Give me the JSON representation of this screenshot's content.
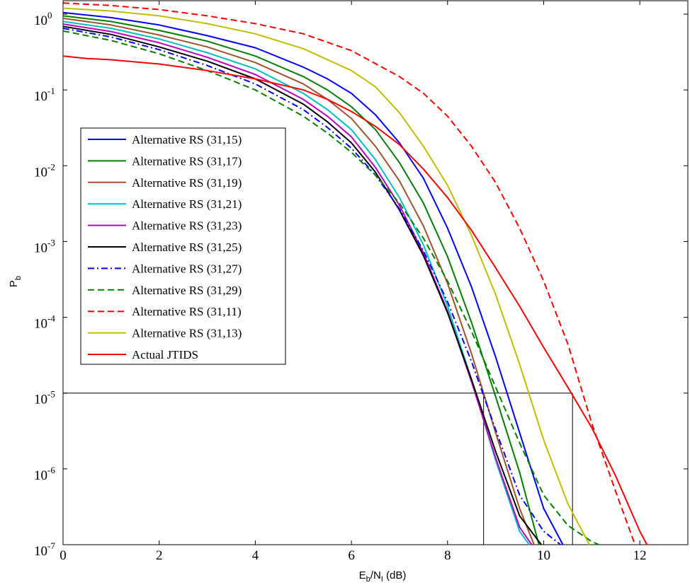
{
  "chart_data": {
    "type": "line",
    "xlabel": {
      "main": "E",
      "sub1": "b",
      "mid": "/N",
      "sub2": "I",
      "tail": " (dB)"
    },
    "ylabel": {
      "main": "P",
      "sub": "b"
    },
    "xlim": [
      0,
      13
    ],
    "ylim": [
      1e-07,
      1.5
    ],
    "yscale": "log",
    "grid": false,
    "legend_position": "upper-left",
    "x_ticks": [
      {
        "v": 0,
        "label": "0"
      },
      {
        "v": 2,
        "label": "2"
      },
      {
        "v": 4,
        "label": "4"
      },
      {
        "v": 6,
        "label": "6"
      },
      {
        "v": 8,
        "label": "8"
      },
      {
        "v": 10,
        "label": "10"
      },
      {
        "v": 12,
        "label": "12"
      }
    ],
    "y_ticks": [
      {
        "exp": 0,
        "base": "10",
        "sup": "0"
      },
      {
        "exp": -1,
        "base": "10",
        "sup": "-1"
      },
      {
        "exp": -2,
        "base": "10",
        "sup": "-2"
      },
      {
        "exp": -3,
        "base": "10",
        "sup": "-3"
      },
      {
        "exp": -4,
        "base": "10",
        "sup": "-4"
      },
      {
        "exp": -5,
        "base": "10",
        "sup": "-5"
      },
      {
        "exp": -6,
        "base": "10",
        "sup": "-6"
      },
      {
        "exp": -7,
        "base": "10",
        "sup": "-7"
      }
    ],
    "reference_lines": [
      {
        "orientation": "horizontal",
        "y": 1e-05,
        "x_from": 0,
        "x_to": 10.6
      },
      {
        "orientation": "vertical",
        "x": 8.75,
        "y_from": 1e-07,
        "y_to": 1e-05
      },
      {
        "orientation": "vertical",
        "x": 10.6,
        "y_from": 1e-07,
        "y_to": 1e-05
      }
    ],
    "series": [
      {
        "name": "Alternative RS (31,15)",
        "color": "#0000ff",
        "dash": "solid",
        "points": [
          [
            0,
            1.05
          ],
          [
            1,
            0.9
          ],
          [
            2,
            0.72
          ],
          [
            3,
            0.52
          ],
          [
            4,
            0.36
          ],
          [
            5,
            0.2
          ],
          [
            5.5,
            0.14
          ],
          [
            6,
            0.09
          ],
          [
            6.5,
            0.047
          ],
          [
            7,
            0.02
          ],
          [
            7.5,
            0.0068
          ],
          [
            8,
            0.0015
          ],
          [
            8.5,
            0.00025
          ],
          [
            9,
            3e-05
          ],
          [
            9.5,
            3e-06
          ],
          [
            10,
            3e-07
          ],
          [
            10.4,
            1e-07
          ]
        ]
      },
      {
        "name": "Alternative RS (31,17)",
        "color": "#008000",
        "dash": "solid",
        "points": [
          [
            0,
            0.95
          ],
          [
            1,
            0.8
          ],
          [
            2,
            0.61
          ],
          [
            3,
            0.44
          ],
          [
            4,
            0.28
          ],
          [
            5,
            0.15
          ],
          [
            5.5,
            0.1
          ],
          [
            6,
            0.06
          ],
          [
            6.5,
            0.03
          ],
          [
            7,
            0.011
          ],
          [
            7.5,
            0.0032
          ],
          [
            8,
            0.00063
          ],
          [
            8.5,
            8.5e-05
          ],
          [
            9,
            9e-06
          ],
          [
            9.5,
            9e-07
          ],
          [
            9.9,
            1e-07
          ]
        ]
      },
      {
        "name": "Alternative RS (31,19)",
        "color": "#a0522d",
        "dash": "solid",
        "points": [
          [
            0,
            0.88
          ],
          [
            1,
            0.72
          ],
          [
            2,
            0.53
          ],
          [
            3,
            0.37
          ],
          [
            4,
            0.23
          ],
          [
            5,
            0.12
          ],
          [
            5.5,
            0.075
          ],
          [
            6,
            0.042
          ],
          [
            6.5,
            0.018
          ],
          [
            7,
            0.0063
          ],
          [
            7.5,
            0.0016
          ],
          [
            8,
            0.00028
          ],
          [
            8.5,
            3.3e-05
          ],
          [
            9,
            3e-06
          ],
          [
            9.5,
            3e-07
          ],
          [
            9.8,
            1e-07
          ]
        ]
      },
      {
        "name": "Alternative RS (31,21)",
        "color": "#00bfbf",
        "dash": "solid",
        "points": [
          [
            0,
            0.8
          ],
          [
            1,
            0.65
          ],
          [
            2,
            0.47
          ],
          [
            3,
            0.31
          ],
          [
            4,
            0.19
          ],
          [
            5,
            0.09
          ],
          [
            5.5,
            0.055
          ],
          [
            6,
            0.03
          ],
          [
            6.5,
            0.012
          ],
          [
            7,
            0.0038
          ],
          [
            7.5,
            0.0009
          ],
          [
            8,
            0.00014
          ],
          [
            8.5,
            1.5e-05
          ],
          [
            9,
            1.3e-06
          ],
          [
            9.5,
            1.5e-07
          ],
          [
            9.7,
            1e-07
          ]
        ]
      },
      {
        "name": "Alternative RS (31,23)",
        "color": "#bf00bf",
        "dash": "solid",
        "points": [
          [
            0,
            0.74
          ],
          [
            1,
            0.59
          ],
          [
            2,
            0.42
          ],
          [
            3,
            0.27
          ],
          [
            4,
            0.16
          ],
          [
            5,
            0.075
          ],
          [
            5.5,
            0.045
          ],
          [
            6,
            0.024
          ],
          [
            6.5,
            0.0095
          ],
          [
            7,
            0.003
          ],
          [
            7.5,
            0.0007
          ],
          [
            8,
            0.00012
          ],
          [
            8.5,
            1.4e-05
          ],
          [
            9,
            1.4e-06
          ],
          [
            9.5,
            1.7e-07
          ],
          [
            9.75,
            1e-07
          ]
        ]
      },
      {
        "name": "Alternative RS (31,25)",
        "color": "#000000",
        "dash": "solid",
        "points": [
          [
            0,
            0.69
          ],
          [
            1,
            0.54
          ],
          [
            2,
            0.37
          ],
          [
            3,
            0.24
          ],
          [
            4,
            0.14
          ],
          [
            5,
            0.065
          ],
          [
            5.5,
            0.038
          ],
          [
            6,
            0.02
          ],
          [
            6.5,
            0.0082
          ],
          [
            7,
            0.0026
          ],
          [
            7.5,
            0.00065
          ],
          [
            8,
            0.000115
          ],
          [
            8.5,
            1.5e-05
          ],
          [
            9,
            1.7e-06
          ],
          [
            9.5,
            2.4e-07
          ],
          [
            9.95,
            1e-07
          ]
        ]
      },
      {
        "name": "Alternative RS (31,27)",
        "color": "#0000ff",
        "dash": "dashdot",
        "points": [
          [
            0,
            0.65
          ],
          [
            1,
            0.5
          ],
          [
            2,
            0.34
          ],
          [
            3,
            0.21
          ],
          [
            4,
            0.12
          ],
          [
            5,
            0.055
          ],
          [
            5.5,
            0.032
          ],
          [
            6,
            0.017
          ],
          [
            6.5,
            0.0075
          ],
          [
            7,
            0.0027
          ],
          [
            7.5,
            0.00075
          ],
          [
            8,
            0.00016
          ],
          [
            8.5,
            2.6e-05
          ],
          [
            9,
            3.3e-06
          ],
          [
            9.5,
            4.5e-07
          ],
          [
            10,
            1.5e-07
          ],
          [
            10.35,
            1e-07
          ]
        ]
      },
      {
        "name": "Alternative RS (31,29)",
        "color": "#008000",
        "dash": "dashed",
        "points": [
          [
            0,
            0.6
          ],
          [
            1,
            0.45
          ],
          [
            2,
            0.3
          ],
          [
            3,
            0.18
          ],
          [
            4,
            0.1
          ],
          [
            5,
            0.045
          ],
          [
            5.5,
            0.027
          ],
          [
            6,
            0.015
          ],
          [
            6.5,
            0.0075
          ],
          [
            7,
            0.0032
          ],
          [
            7.5,
            0.0011
          ],
          [
            8,
            0.0003
          ],
          [
            8.5,
            6.5e-05
          ],
          [
            9,
            1.2e-05
          ],
          [
            9.5,
            2.2e-06
          ],
          [
            10,
            4.5e-07
          ],
          [
            10.5,
            1.8e-07
          ],
          [
            11,
            1.1e-07
          ],
          [
            11.15,
            1e-07
          ]
        ]
      },
      {
        "name": "Alternative RS (31,11)",
        "color": "#ff0000",
        "dash": "dashed",
        "points": [
          [
            0,
            1.4
          ],
          [
            1,
            1.3
          ],
          [
            2,
            1.15
          ],
          [
            3,
            0.95
          ],
          [
            4,
            0.75
          ],
          [
            5,
            0.55
          ],
          [
            6,
            0.33
          ],
          [
            7,
            0.15
          ],
          [
            7.5,
            0.09
          ],
          [
            8,
            0.045
          ],
          [
            8.5,
            0.018
          ],
          [
            9,
            0.006
          ],
          [
            9.5,
            0.0015
          ],
          [
            10,
            0.0003
          ],
          [
            10.5,
            4.5e-05
          ],
          [
            11,
            4e-06
          ],
          [
            11.5,
            5e-07
          ],
          [
            11.9,
            1e-07
          ]
        ]
      },
      {
        "name": "Alternative RS (31,13)",
        "color": "#bfbf00",
        "dash": "solid",
        "points": [
          [
            0,
            1.2
          ],
          [
            1,
            1.1
          ],
          [
            2,
            0.95
          ],
          [
            3,
            0.75
          ],
          [
            4,
            0.55
          ],
          [
            5,
            0.35
          ],
          [
            6,
            0.18
          ],
          [
            6.5,
            0.11
          ],
          [
            7,
            0.05
          ],
          [
            7.5,
            0.018
          ],
          [
            8,
            0.0055
          ],
          [
            8.5,
            0.0012
          ],
          [
            9,
            0.0002
          ],
          [
            9.5,
            2.4e-05
          ],
          [
            10,
            2.4e-06
          ],
          [
            10.5,
            3.5e-07
          ],
          [
            10.95,
            1e-07
          ]
        ]
      },
      {
        "name": "Actual JTIDS",
        "color": "#ff0000",
        "dash": "solid",
        "points": [
          [
            0,
            0.28
          ],
          [
            0.5,
            0.26
          ],
          [
            1,
            0.25
          ],
          [
            2,
            0.22
          ],
          [
            3,
            0.18
          ],
          [
            4,
            0.14
          ],
          [
            5,
            0.1
          ],
          [
            5.5,
            0.075
          ],
          [
            6,
            0.052
          ],
          [
            6.5,
            0.033
          ],
          [
            7,
            0.019
          ],
          [
            7.5,
            0.009
          ],
          [
            8,
            0.0038
          ],
          [
            8.5,
            0.0014
          ],
          [
            9,
            0.00045
          ],
          [
            9.5,
            0.00014
          ],
          [
            10,
            4e-05
          ],
          [
            10.5,
            1.2e-05
          ],
          [
            11,
            3.5e-06
          ],
          [
            11.5,
            8e-07
          ],
          [
            12,
            1.5e-07
          ],
          [
            12.15,
            1e-07
          ]
        ]
      }
    ]
  }
}
